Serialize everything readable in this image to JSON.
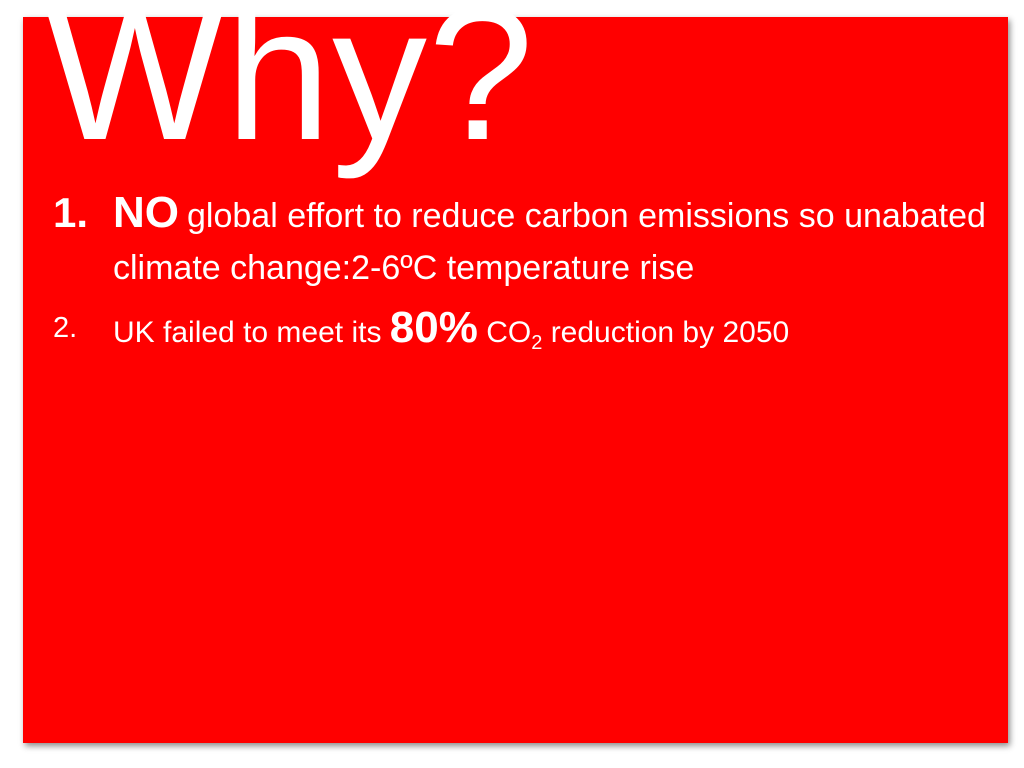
{
  "slide": {
    "title": "Why?",
    "background_color": "#ff0000",
    "text_color": "#ffffff",
    "items": [
      {
        "number": "1.",
        "emphasis": "NO",
        "text": "global effort to reduce carbon emissions so unabated climate change:2-6ºC temperature rise"
      },
      {
        "number": "2.",
        "text_before": "UK failed to meet its",
        "emphasis": "80%",
        "co": "CO",
        "subscript": "2",
        "text_after": "reduction by 2050"
      }
    ]
  }
}
